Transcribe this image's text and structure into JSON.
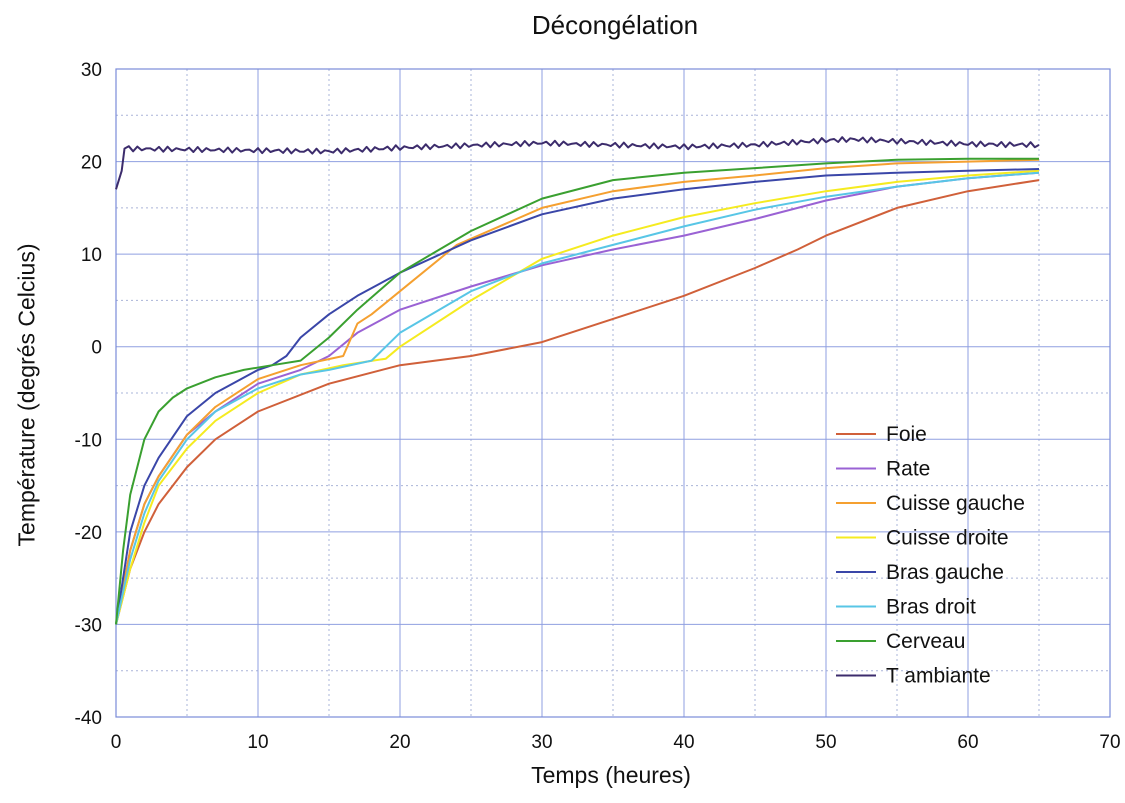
{
  "chart_data": {
    "type": "line",
    "title": "Décongélation",
    "xlabel": "Temps (heures)",
    "ylabel": "Température (degrés Celcius)",
    "xlim": [
      0,
      70
    ],
    "ylim": [
      -40,
      30
    ],
    "xticks": [
      0,
      10,
      20,
      30,
      40,
      50,
      60,
      70
    ],
    "yticks": [
      -40,
      -30,
      -20,
      -10,
      0,
      10,
      20,
      30
    ],
    "grid": true,
    "legend_position": "bottom-right",
    "series": [
      {
        "name": "Foie",
        "color": "#d0603a",
        "x": [
          0,
          1,
          2,
          3,
          5,
          7,
          10,
          15,
          20,
          25,
          30,
          35,
          40,
          45,
          48,
          50,
          55,
          60,
          65
        ],
        "y": [
          -30,
          -24,
          -20,
          -17,
          -13,
          -10,
          -7,
          -4,
          -2,
          -1,
          0.5,
          3,
          5.5,
          8.5,
          10.5,
          12,
          15,
          16.8,
          18
        ]
      },
      {
        "name": "Rate",
        "color": "#9a62d4",
        "x": [
          0,
          1,
          2,
          3,
          5,
          7,
          10,
          13,
          15,
          17,
          20,
          25,
          30,
          35,
          40,
          45,
          50,
          55,
          60,
          65
        ],
        "y": [
          -30,
          -22,
          -17,
          -14,
          -9.5,
          -7,
          -4,
          -2.5,
          -1,
          1.5,
          4,
          6.5,
          8.8,
          10.5,
          12,
          13.8,
          15.8,
          17.3,
          18.2,
          18.8
        ]
      },
      {
        "name": "Cuisse gauche",
        "color": "#f5a030",
        "x": [
          0,
          1,
          2,
          3,
          5,
          7,
          10,
          13,
          16,
          17,
          18,
          20,
          24,
          30,
          35,
          40,
          45,
          50,
          55,
          60,
          65
        ],
        "y": [
          -30,
          -22,
          -17,
          -14,
          -9.5,
          -6.5,
          -3.5,
          -2,
          -1,
          2.5,
          3.5,
          6,
          11,
          15,
          16.8,
          17.8,
          18.5,
          19.3,
          19.8,
          20,
          20.2
        ]
      },
      {
        "name": "Cuisse droite",
        "color": "#f5eb20",
        "x": [
          0,
          1,
          2,
          3,
          5,
          7,
          10,
          13,
          16,
          19,
          20,
          25,
          30,
          35,
          40,
          45,
          50,
          55,
          60,
          65
        ],
        "y": [
          -30,
          -24,
          -19,
          -15,
          -11,
          -8,
          -5,
          -3,
          -2,
          -1.3,
          0,
          5,
          9.5,
          12,
          14,
          15.5,
          16.8,
          17.8,
          18.5,
          19
        ]
      },
      {
        "name": "Bras gauche",
        "color": "#3a46a8",
        "x": [
          0,
          1,
          2,
          3,
          5,
          7,
          10,
          11,
          12,
          13,
          15,
          17,
          20,
          25,
          30,
          35,
          40,
          45,
          50,
          55,
          60,
          65
        ],
        "y": [
          -30,
          -20,
          -15,
          -12,
          -7.5,
          -5,
          -2.5,
          -2,
          -1,
          1,
          3.5,
          5.5,
          8,
          11.5,
          14.3,
          16,
          17,
          17.8,
          18.5,
          18.8,
          19,
          19.2
        ]
      },
      {
        "name": "Bras droit",
        "color": "#58c6e6",
        "x": [
          0,
          1,
          2,
          3,
          5,
          7,
          10,
          13,
          15,
          18,
          20,
          25,
          30,
          35,
          40,
          45,
          50,
          55,
          60,
          65
        ],
        "y": [
          -30,
          -23,
          -18,
          -14.5,
          -10,
          -7,
          -4.5,
          -3,
          -2.5,
          -1.5,
          1.5,
          6,
          9,
          11,
          13,
          14.8,
          16.2,
          17.3,
          18.2,
          18.8
        ]
      },
      {
        "name": "Cerveau",
        "color": "#3aa030",
        "x": [
          0,
          0.5,
          1,
          2,
          3,
          4,
          5,
          7,
          9,
          11,
          13,
          15,
          17,
          20,
          25,
          30,
          35,
          40,
          45,
          50,
          55,
          60,
          65
        ],
        "y": [
          -30,
          -22,
          -16,
          -10,
          -7,
          -5.5,
          -4.5,
          -3.3,
          -2.5,
          -2,
          -1.5,
          1,
          4,
          8,
          12.5,
          16,
          18,
          18.8,
          19.3,
          19.8,
          20.2,
          20.3,
          20.3
        ]
      },
      {
        "name": "T ambiante",
        "color": "#3c2c6c",
        "x": [
          0,
          0.4,
          0.6,
          10,
          15,
          20,
          30,
          40,
          45,
          50,
          52,
          55,
          60,
          65
        ],
        "y": [
          17,
          19,
          21.4,
          21.2,
          21.1,
          21.5,
          22,
          21.6,
          21.8,
          22.3,
          22.4,
          22.2,
          21.9,
          21.8
        ]
      }
    ]
  }
}
